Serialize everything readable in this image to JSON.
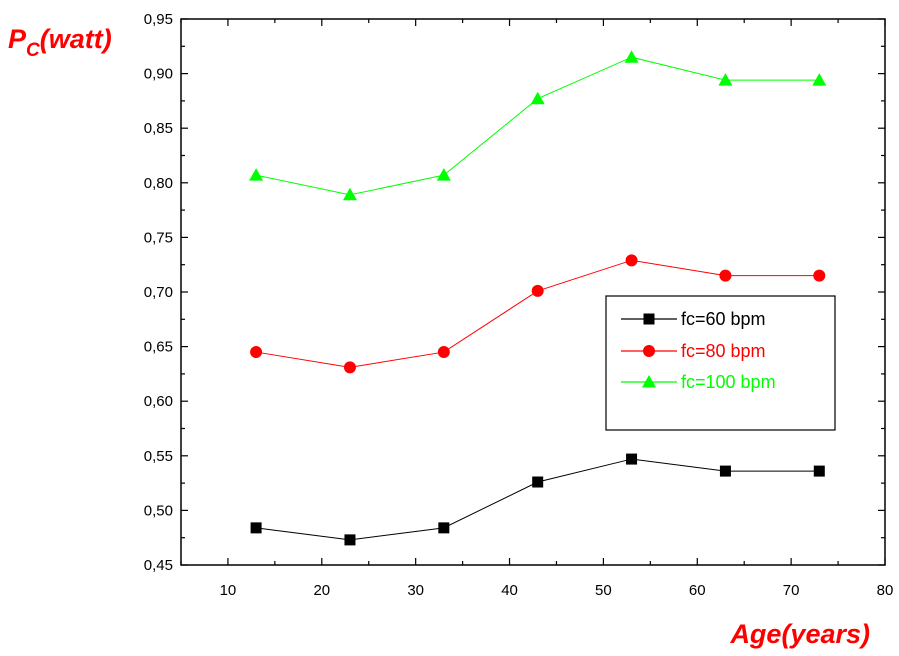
{
  "chart_data": {
    "type": "line",
    "title": "",
    "ylabel": {
      "main": "P",
      "sub": "C",
      "rest": "(watt)"
    },
    "xlabel": "Age(years)",
    "xlim": [
      5,
      80
    ],
    "ylim": [
      0.45,
      0.95
    ],
    "x_ticks": [
      10,
      20,
      30,
      40,
      50,
      60,
      70,
      80
    ],
    "x_tick_labels": [
      "10",
      "20",
      "30",
      "40",
      "50",
      "60",
      "70",
      "80"
    ],
    "y_ticks": [
      0.45,
      0.5,
      0.55,
      0.6,
      0.65,
      0.7,
      0.75,
      0.8,
      0.85,
      0.9,
      0.95
    ],
    "y_tick_labels": [
      "0,45",
      "0,50",
      "0,55",
      "0,60",
      "0,65",
      "0,70",
      "0,75",
      "0,80",
      "0,85",
      "0,90",
      "0,95"
    ],
    "grid": false,
    "legend_position": "center-right",
    "x": [
      13,
      23,
      33,
      43,
      53,
      63,
      73
    ],
    "series": [
      {
        "name": "fc=60 bpm",
        "color": "#000000",
        "marker": "square",
        "values": [
          0.484,
          0.473,
          0.484,
          0.526,
          0.547,
          0.536,
          0.536
        ]
      },
      {
        "name": "fc=80 bpm",
        "color": "#ff0000",
        "marker": "circle",
        "values": [
          0.645,
          0.631,
          0.645,
          0.701,
          0.729,
          0.715,
          0.715
        ]
      },
      {
        "name": "fc=100 bpm",
        "color": "#00ff00",
        "marker": "triangle",
        "values": [
          0.807,
          0.789,
          0.807,
          0.877,
          0.915,
          0.894,
          0.894
        ]
      }
    ]
  }
}
